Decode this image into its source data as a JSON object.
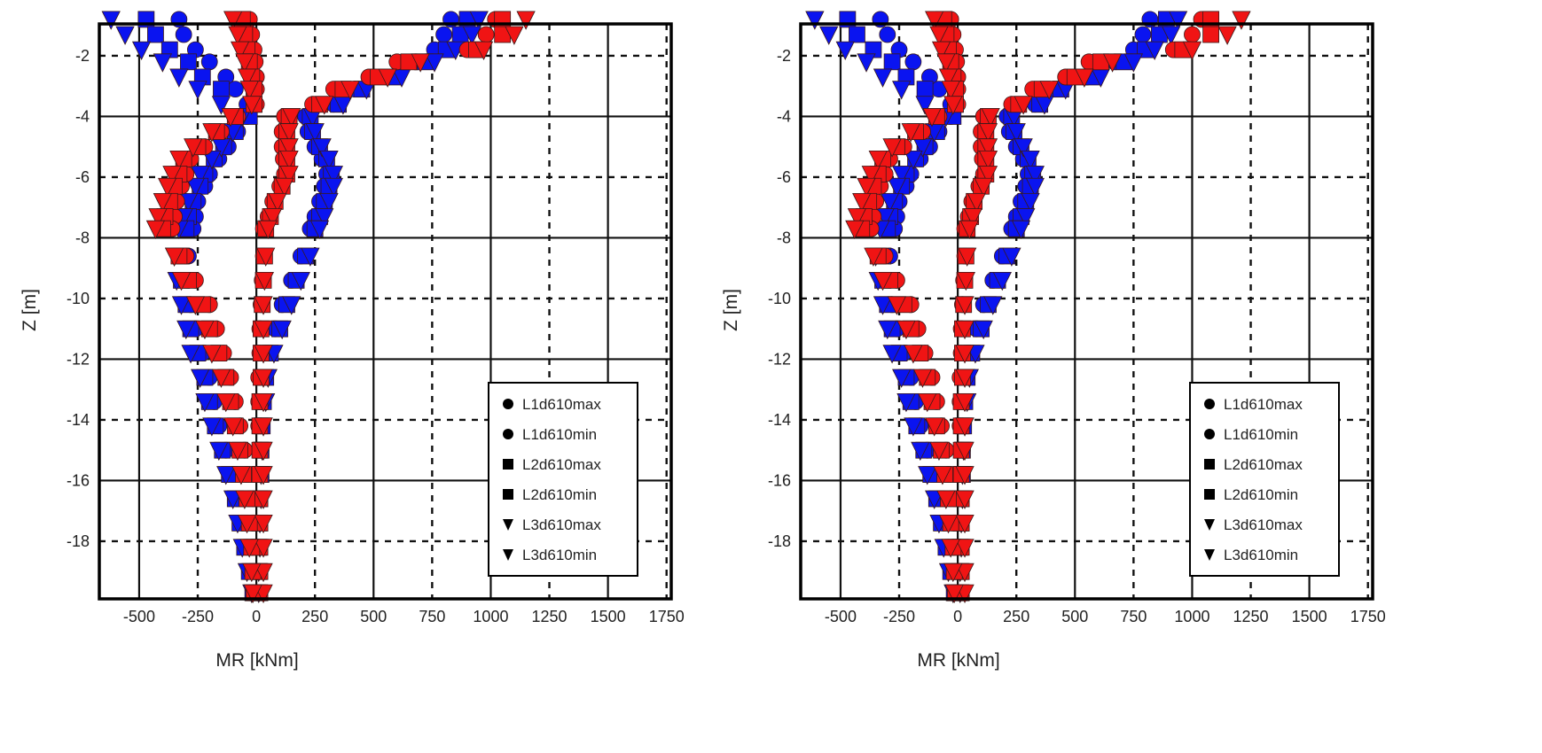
{
  "chart_data": [
    {
      "type": "scatter",
      "title": "",
      "xlabel": "MR [kNm]",
      "ylabel": "Z [m]",
      "xlim": [
        -670,
        1770
      ],
      "ylim": [
        -19.9,
        -0.95
      ],
      "xticks": [
        -500,
        -250,
        0,
        250,
        500,
        750,
        1000,
        1250,
        1500,
        1750
      ],
      "yticks": [
        -2,
        -4,
        -6,
        -8,
        -10,
        -12,
        -14,
        -16,
        -18
      ],
      "grid": true,
      "legend_position": "bottom-right",
      "colors": {
        "blue": "#0a14f0",
        "red": "#f01414"
      },
      "z": [
        -0.8,
        -1.3,
        -1.8,
        -2.2,
        -2.7,
        -3.1,
        -3.6,
        -4.0,
        -4.5,
        -5.0,
        -5.4,
        -5.9,
        -6.3,
        -6.8,
        -7.3,
        -7.7,
        -8.6,
        -9.4,
        -10.2,
        -11.0,
        -11.8,
        -12.6,
        -13.4,
        -14.2,
        -15.0,
        -15.8,
        -16.6,
        -17.4,
        -18.2,
        -19.0,
        -19.7
      ],
      "series": [
        {
          "name": "L1d610max",
          "marker": "circle",
          "values_blue": [
            830,
            800,
            760,
            680,
            560,
            420,
            330,
            210,
            220,
            250,
            280,
            300,
            290,
            270,
            250,
            230,
            190,
            150,
            110,
            80,
            50,
            30,
            25,
            20,
            20,
            15,
            15,
            10,
            10,
            5,
            5
          ],
          "values_red": [
            1020,
            980,
            900,
            600,
            480,
            330,
            240,
            120,
            110,
            110,
            115,
            120,
            100,
            70,
            50,
            30,
            30,
            25,
            20,
            15,
            15,
            10,
            10,
            10,
            10,
            5,
            5,
            5,
            5,
            5,
            5
          ]
        },
        {
          "name": "L1d610min",
          "marker": "circle",
          "values_blue": [
            -330,
            -310,
            -260,
            -200,
            -130,
            -90,
            -40,
            -40,
            -80,
            -120,
            -160,
            -200,
            -220,
            -250,
            -260,
            -270,
            -290,
            -290,
            -280,
            -260,
            -230,
            -200,
            -180,
            -160,
            -130,
            -100,
            -80,
            -60,
            -40,
            -20,
            -10
          ],
          "values_red": [
            -30,
            -20,
            -10,
            -5,
            0,
            0,
            0,
            -80,
            -150,
            -220,
            -280,
            -300,
            -320,
            -340,
            -350,
            -360,
            -300,
            -260,
            -200,
            -170,
            -140,
            -110,
            -90,
            -70,
            -50,
            -40,
            -30,
            -20,
            -15,
            -10,
            -5
          ]
        },
        {
          "name": "L2d610max",
          "marker": "square",
          "values_blue": [
            900,
            870,
            810,
            720,
            590,
            450,
            350,
            230,
            240,
            270,
            300,
            320,
            310,
            290,
            270,
            250,
            210,
            170,
            130,
            100,
            60,
            40,
            30,
            25,
            20,
            20,
            15,
            15,
            10,
            10,
            5
          ],
          "values_red": [
            1050,
            1050,
            940,
            650,
            520,
            370,
            270,
            140,
            130,
            130,
            130,
            130,
            110,
            80,
            60,
            40,
            35,
            30,
            25,
            20,
            20,
            20,
            15,
            15,
            15,
            15,
            15,
            15,
            15,
            15,
            15
          ]
        },
        {
          "name": "L2d610min",
          "marker": "square",
          "values_blue": [
            -470,
            -430,
            -370,
            -290,
            -230,
            -150,
            -10,
            -30,
            -90,
            -140,
            -180,
            -220,
            -240,
            -270,
            -290,
            -300,
            -320,
            -320,
            -300,
            -280,
            -250,
            -220,
            -200,
            -175,
            -145,
            -115,
            -90,
            -70,
            -50,
            -30,
            -15
          ],
          "values_red": [
            -60,
            -50,
            -40,
            -30,
            -20,
            -10,
            -10,
            -90,
            -170,
            -250,
            -310,
            -330,
            -350,
            -370,
            -390,
            -400,
            -330,
            -290,
            -230,
            -200,
            -160,
            -130,
            -110,
            -90,
            -70,
            -55,
            -40,
            -30,
            -20,
            -15,
            -10
          ]
        },
        {
          "name": "L3d610max",
          "marker": "triangle-down",
          "values_blue": [
            950,
            920,
            850,
            760,
            620,
            470,
            370,
            240,
            250,
            280,
            310,
            330,
            330,
            310,
            290,
            270,
            230,
            190,
            150,
            110,
            75,
            50,
            40,
            30,
            25,
            20,
            20,
            15,
            15,
            10,
            10
          ],
          "values_red": [
            1150,
            1100,
            970,
            700,
            560,
            400,
            290,
            150,
            140,
            140,
            140,
            140,
            120,
            90,
            70,
            50,
            40,
            35,
            30,
            30,
            30,
            30,
            30,
            30,
            30,
            30,
            30,
            30,
            30,
            30,
            30
          ]
        },
        {
          "name": "L3d610min",
          "marker": "triangle-down",
          "values_blue": [
            -620,
            -560,
            -490,
            -400,
            -330,
            -250,
            -150,
            -60,
            -100,
            -150,
            -190,
            -240,
            -260,
            -290,
            -310,
            -330,
            -350,
            -340,
            -320,
            -300,
            -280,
            -240,
            -220,
            -190,
            -160,
            -130,
            -100,
            -80,
            -60,
            -40,
            -20
          ],
          "values_red": [
            -100,
            -80,
            -70,
            -50,
            -40,
            -30,
            -20,
            -110,
            -190,
            -270,
            -330,
            -360,
            -380,
            -400,
            -420,
            -430,
            -350,
            -320,
            -260,
            -220,
            -190,
            -150,
            -130,
            -100,
            -80,
            -65,
            -50,
            -40,
            -30,
            -20,
            -15
          ]
        }
      ]
    },
    {
      "type": "scatter",
      "title": "",
      "xlabel": "MR [kNm]",
      "ylabel": "Z [m]",
      "xlim": [
        -670,
        1770
      ],
      "ylim": [
        -19.9,
        -0.95
      ],
      "xticks": [
        -500,
        -250,
        0,
        250,
        500,
        750,
        1000,
        1250,
        1500,
        1750
      ],
      "yticks": [
        -2,
        -4,
        -6,
        -8,
        -10,
        -12,
        -14,
        -16,
        -18
      ],
      "grid": true,
      "legend_position": "bottom-right",
      "colors": {
        "blue": "#0a14f0",
        "red": "#f01414"
      },
      "z": [
        -0.8,
        -1.3,
        -1.8,
        -2.2,
        -2.7,
        -3.1,
        -3.6,
        -4.0,
        -4.5,
        -5.0,
        -5.4,
        -5.9,
        -6.3,
        -6.8,
        -7.3,
        -7.7,
        -8.6,
        -9.4,
        -10.2,
        -11.0,
        -11.8,
        -12.6,
        -13.4,
        -14.2,
        -15.0,
        -15.8,
        -16.6,
        -17.4,
        -18.2,
        -19.0,
        -19.7
      ],
      "series": [
        {
          "name": "L1d610max",
          "marker": "circle",
          "values_blue": [
            820,
            790,
            750,
            670,
            550,
            410,
            330,
            210,
            220,
            250,
            280,
            300,
            290,
            270,
            250,
            230,
            190,
            150,
            110,
            80,
            50,
            30,
            25,
            20,
            20,
            15,
            15,
            10,
            10,
            5,
            5
          ],
          "values_red": [
            1040,
            1000,
            920,
            560,
            460,
            320,
            230,
            110,
            100,
            100,
            105,
            110,
            90,
            60,
            45,
            30,
            30,
            25,
            20,
            15,
            15,
            10,
            10,
            10,
            10,
            5,
            5,
            5,
            5,
            5,
            5
          ]
        },
        {
          "name": "L1d610min",
          "marker": "circle",
          "values_blue": [
            -330,
            -300,
            -250,
            -190,
            -120,
            -80,
            -30,
            -30,
            -80,
            -120,
            -160,
            -200,
            -220,
            -250,
            -260,
            -270,
            -290,
            -290,
            -280,
            -260,
            -230,
            -200,
            -180,
            -160,
            -130,
            -100,
            -80,
            -60,
            -40,
            -20,
            -10
          ],
          "values_red": [
            -30,
            -20,
            -10,
            -5,
            0,
            0,
            0,
            -80,
            -150,
            -230,
            -290,
            -310,
            -330,
            -350,
            -360,
            -370,
            -310,
            -260,
            -200,
            -170,
            -140,
            -110,
            -90,
            -70,
            -50,
            -40,
            -30,
            -20,
            -15,
            -10,
            -5
          ]
        },
        {
          "name": "L2d610max",
          "marker": "square",
          "values_blue": [
            890,
            860,
            800,
            710,
            580,
            440,
            350,
            230,
            240,
            270,
            300,
            320,
            310,
            290,
            270,
            250,
            210,
            170,
            130,
            100,
            60,
            40,
            30,
            25,
            20,
            20,
            15,
            15,
            10,
            10,
            5
          ],
          "values_red": [
            1080,
            1080,
            960,
            610,
            500,
            360,
            260,
            130,
            120,
            120,
            120,
            120,
            100,
            70,
            55,
            40,
            35,
            30,
            25,
            20,
            20,
            20,
            15,
            15,
            15,
            15,
            15,
            15,
            15,
            15,
            15
          ]
        },
        {
          "name": "L2d610min",
          "marker": "square",
          "values_blue": [
            -470,
            -430,
            -360,
            -280,
            -220,
            -140,
            -10,
            -20,
            -90,
            -140,
            -180,
            -220,
            -240,
            -270,
            -290,
            -300,
            -320,
            -320,
            -300,
            -280,
            -250,
            -220,
            -200,
            -175,
            -145,
            -115,
            -90,
            -70,
            -50,
            -30,
            -15
          ],
          "values_red": [
            -60,
            -50,
            -40,
            -30,
            -20,
            -10,
            -10,
            -90,
            -180,
            -260,
            -320,
            -340,
            -360,
            -380,
            -400,
            -410,
            -340,
            -290,
            -230,
            -200,
            -160,
            -130,
            -110,
            -90,
            -70,
            -55,
            -40,
            -30,
            -20,
            -15,
            -10
          ]
        },
        {
          "name": "L3d610max",
          "marker": "triangle-down",
          "values_blue": [
            940,
            910,
            840,
            750,
            610,
            460,
            370,
            240,
            250,
            280,
            310,
            330,
            330,
            310,
            290,
            270,
            230,
            190,
            150,
            110,
            75,
            50,
            40,
            30,
            25,
            20,
            20,
            15,
            15,
            10,
            10
          ],
          "values_red": [
            1210,
            1150,
            1000,
            660,
            540,
            390,
            280,
            140,
            130,
            130,
            130,
            130,
            110,
            80,
            65,
            50,
            40,
            35,
            30,
            30,
            30,
            30,
            30,
            30,
            30,
            30,
            30,
            30,
            30,
            30,
            30
          ]
        },
        {
          "name": "L3d610min",
          "marker": "triangle-down",
          "values_blue": [
            -610,
            -550,
            -480,
            -390,
            -320,
            -240,
            -140,
            -50,
            -100,
            -150,
            -190,
            -240,
            -260,
            -290,
            -310,
            -330,
            -350,
            -340,
            -320,
            -300,
            -280,
            -240,
            -220,
            -190,
            -160,
            -130,
            -100,
            -80,
            -60,
            -40,
            -20
          ],
          "values_red": [
            -100,
            -80,
            -70,
            -50,
            -40,
            -30,
            -20,
            -110,
            -200,
            -280,
            -340,
            -370,
            -390,
            -410,
            -430,
            -440,
            -360,
            -320,
            -260,
            -220,
            -190,
            -150,
            -130,
            -100,
            -80,
            -65,
            -50,
            -40,
            -30,
            -20,
            -15
          ]
        }
      ]
    }
  ]
}
